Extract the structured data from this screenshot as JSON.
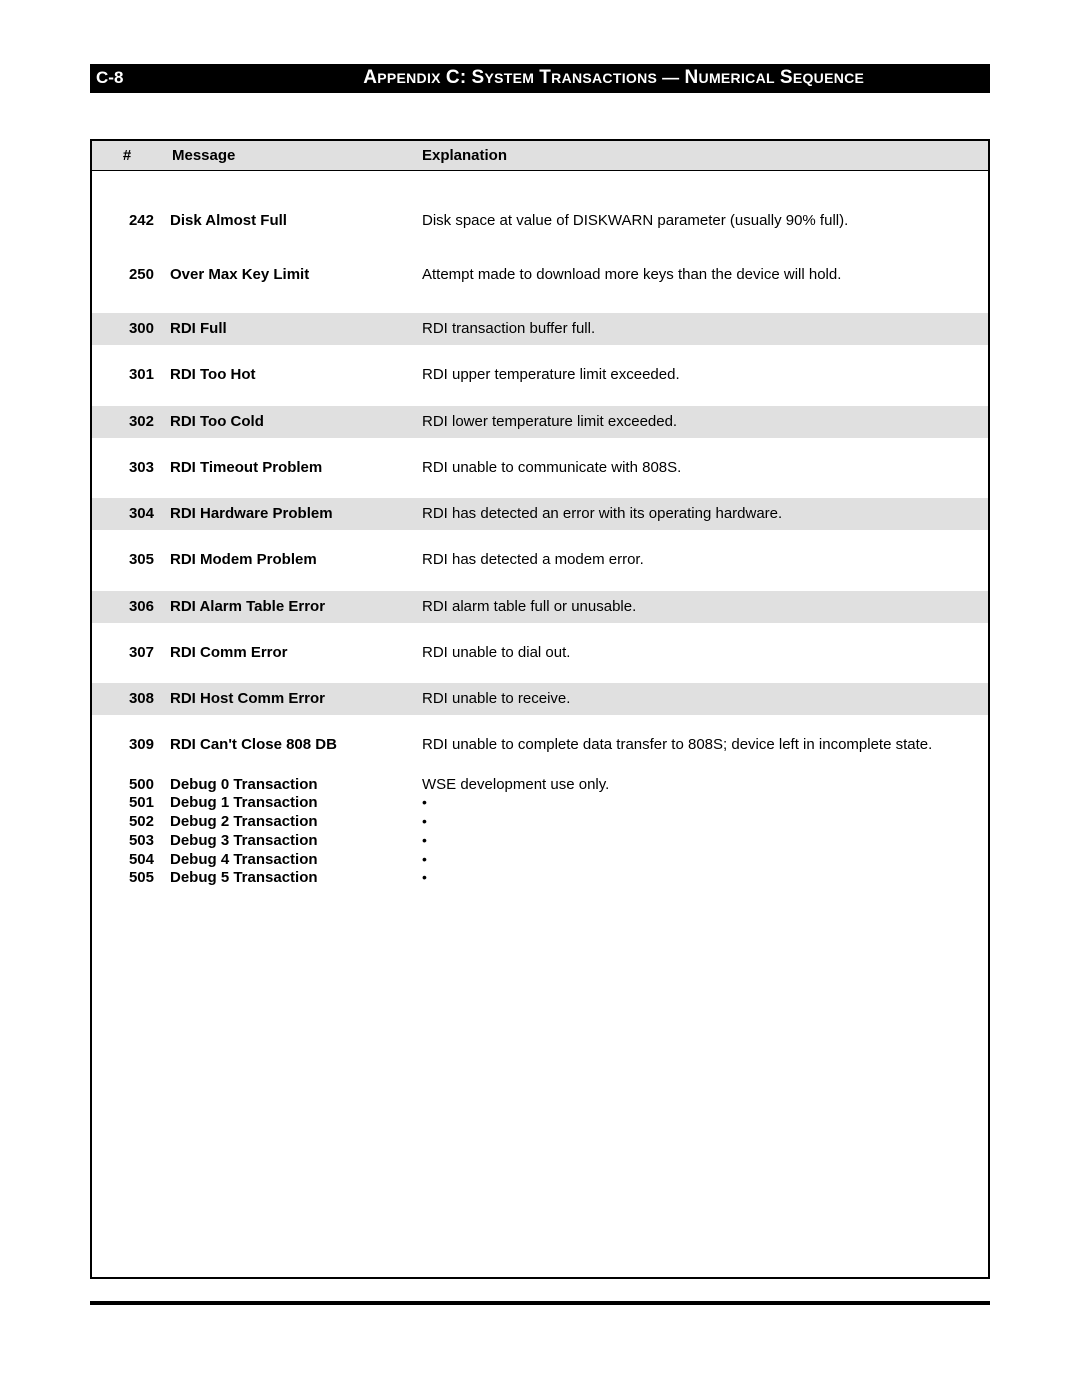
{
  "header": {
    "page_code": "C-8",
    "title_prefix": "A",
    "title_rest": "PPENDIX",
    "title_c": "C:",
    "title_s": "S",
    "title_sys": "YSTEM",
    "title_t": "T",
    "title_trans": "RANSACTIONS",
    "title_dash": "—",
    "title_n": "N",
    "title_num": "UMERICAL",
    "title_seq_s": "S",
    "title_seq": "EQUENCE"
  },
  "columns": {
    "num": "#",
    "msg": "Message",
    "exp": "Explanation"
  },
  "rows": [
    {
      "num": "242",
      "msg": "Disk Almost Full",
      "exp": "Disk space at value of DISKWARN parameter (usually 90% full).",
      "shaded": false,
      "gap": "gap"
    },
    {
      "num": "250",
      "msg": "Over Max Key Limit",
      "exp": "Attempt made to download more keys than the device will hold.",
      "shaded": false,
      "gap": "gap"
    },
    {
      "num": "300",
      "msg": "RDI Full",
      "exp": "RDI transaction buffer full.",
      "shaded": true,
      "gap": "gap-sm"
    },
    {
      "num": "301",
      "msg": "RDI Too Hot",
      "exp": "RDI upper temperature limit exceeded.",
      "shaded": false,
      "gap": "gap-sm"
    },
    {
      "num": "302",
      "msg": "RDI Too Cold",
      "exp": "RDI lower temperature limit exceeded.",
      "shaded": true,
      "gap": "gap-sm"
    },
    {
      "num": "303",
      "msg": "RDI Timeout Problem",
      "exp": "RDI unable to communicate with 808S.",
      "shaded": false,
      "gap": "gap-sm"
    },
    {
      "num": "304",
      "msg": "RDI Hardware Problem",
      "exp": "RDI has detected an error with its operating hardware.",
      "shaded": true,
      "gap": "gap-sm"
    },
    {
      "num": "305",
      "msg": "RDI Modem Problem",
      "exp": "RDI has detected a modem error.",
      "shaded": false,
      "gap": "gap-sm"
    },
    {
      "num": "306",
      "msg": "RDI Alarm Table Error",
      "exp": "RDI alarm table full or unusable.",
      "shaded": true,
      "gap": "gap-sm"
    },
    {
      "num": "307",
      "msg": "RDI Comm Error",
      "exp": "RDI unable to dial out.",
      "shaded": false,
      "gap": "gap-sm"
    },
    {
      "num": "308",
      "msg": "RDI Host Comm Error",
      "exp": "RDI unable to receive.",
      "shaded": true,
      "gap": "gap-sm"
    },
    {
      "num": "309",
      "msg": "RDI Can't Close 808 DB",
      "exp": "RDI unable to complete data transfer to 808S; device left in incomplete state.",
      "shaded": false,
      "gap": "gap-sm",
      "justify": true
    }
  ],
  "debug": [
    {
      "num": "500",
      "msg": "Debug 0 Transaction",
      "exp": "WSE development use only."
    },
    {
      "num": "501",
      "msg": "Debug 1 Transaction",
      "exp": "•"
    },
    {
      "num": "502",
      "msg": "Debug 2 Transaction",
      "exp": "•"
    },
    {
      "num": "503",
      "msg": "Debug 3 Transaction",
      "exp": "•"
    },
    {
      "num": "504",
      "msg": "Debug 4 Transaction",
      "exp": "•"
    },
    {
      "num": "505",
      "msg": "Debug 5 Transaction",
      "exp": "•"
    }
  ]
}
